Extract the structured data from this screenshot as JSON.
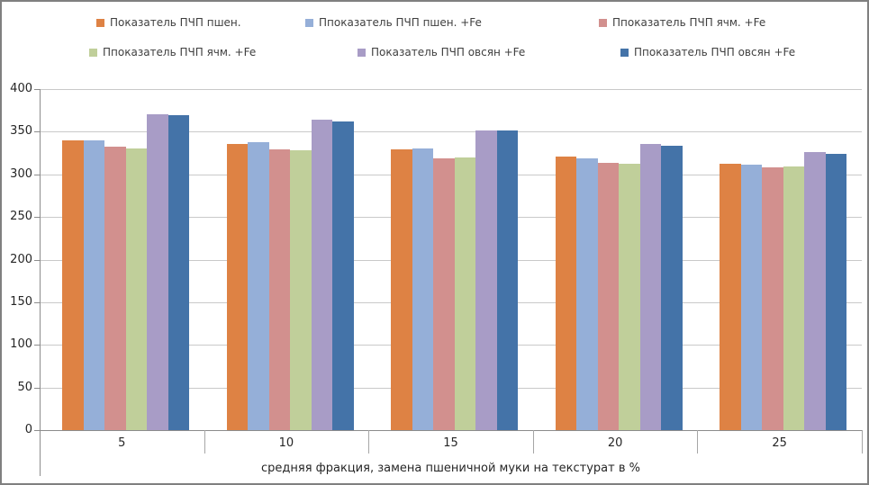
{
  "figure": {
    "background": "#ffffff",
    "border_color": "#808080",
    "text_color": "#262626",
    "gridline_color": "#c9c9c9",
    "axis_color": "#8c8c8c"
  },
  "chart_data": {
    "type": "bar",
    "categories": [
      "5",
      "10",
      "15",
      "20",
      "25"
    ],
    "series": [
      {
        "name": "Показатель ПЧП пшен.",
        "color": "#de8244",
        "values": [
          340,
          336,
          329,
          321,
          312
        ]
      },
      {
        "name": "Ппоказатель ПЧП пшен. +Fe",
        "color": "#95afd8",
        "values": [
          340,
          338,
          330,
          319,
          311
        ]
      },
      {
        "name": "Ппоказатель ПЧП ячм. +Fe",
        "color": "#d2908e",
        "values": [
          332,
          329,
          319,
          314,
          308
        ]
      },
      {
        "name": "Ппоказатель ПЧП ячм. +Fe",
        "color": "#c0cf9a",
        "values": [
          330,
          328,
          320,
          312,
          309
        ]
      },
      {
        "name": "Показатель ПЧП овсян +Fe",
        "color": "#a89cc6",
        "values": [
          370,
          364,
          352,
          336,
          326
        ]
      },
      {
        "name": "Ппоказатель ПЧП овсян +Fe",
        "color": "#4473a8",
        "values": [
          369,
          362,
          351,
          334,
          324
        ]
      }
    ],
    "title": "",
    "xlabel": "средняя фракция, замена пшеничной муки на текстурат в %",
    "ylabel": "",
    "ylim": [
      0,
      400
    ],
    "yticks": [
      0,
      50,
      100,
      150,
      200,
      250,
      300,
      350,
      400
    ],
    "grid": true,
    "legend_position": "top"
  }
}
